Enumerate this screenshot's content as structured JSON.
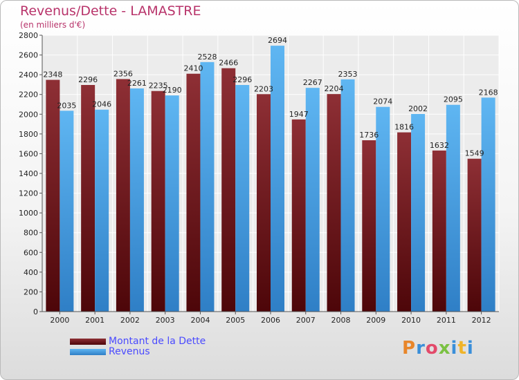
{
  "chart_data": {
    "type": "bar",
    "title": "Revenus/Dette - LAMASTRE",
    "subtitle": "(en milliers d'€)",
    "categories": [
      "2000",
      "2001",
      "2002",
      "2003",
      "2004",
      "2005",
      "2006",
      "2007",
      "2008",
      "2009",
      "2010",
      "2011",
      "2012"
    ],
    "series": [
      {
        "name": "Montant de la Dette",
        "values": [
          2348,
          2296,
          2356,
          2235,
          2410,
          2466,
          2203,
          1947,
          2204,
          1736,
          1816,
          1632,
          1549
        ],
        "color": "#7a1f26"
      },
      {
        "name": "Revenus",
        "values": [
          2035,
          2046,
          2261,
          2190,
          2528,
          2296,
          2694,
          2267,
          2353,
          2074,
          2002,
          2095,
          2168
        ],
        "color": "#4aa8ea"
      }
    ],
    "ylim": [
      0,
      2800
    ],
    "yticks": [
      0,
      200,
      400,
      600,
      800,
      1000,
      1200,
      1400,
      1600,
      1800,
      2000,
      2200,
      2400,
      2600,
      2800
    ],
    "grid": true,
    "legend": "bottom-left"
  },
  "logo": {
    "text": "Proxiti",
    "colors": [
      "#e8862a",
      "#3a8fd9",
      "#e34a6a",
      "#7ac142",
      "#3a8fd9",
      "#f0b429",
      "#3a8fd9"
    ]
  }
}
